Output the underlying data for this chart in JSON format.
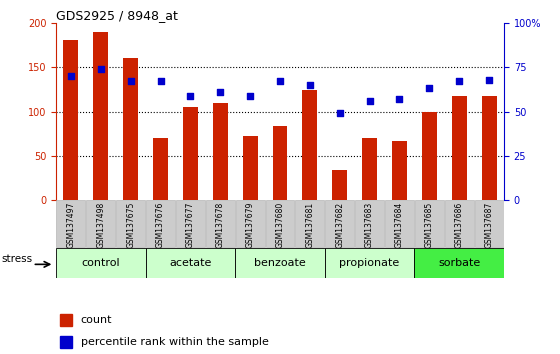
{
  "title": "GDS2925 / 8948_at",
  "samples": [
    "GSM137497",
    "GSM137498",
    "GSM137675",
    "GSM137676",
    "GSM137677",
    "GSM137678",
    "GSM137679",
    "GSM137680",
    "GSM137681",
    "GSM137682",
    "GSM137683",
    "GSM137684",
    "GSM137685",
    "GSM137686",
    "GSM137687"
  ],
  "counts": [
    181,
    190,
    161,
    70,
    105,
    110,
    72,
    84,
    124,
    34,
    70,
    67,
    100,
    117,
    117
  ],
  "percentiles": [
    70,
    74,
    67,
    67,
    59,
    61,
    59,
    67,
    65,
    49,
    56,
    57,
    63,
    67,
    68
  ],
  "groups": [
    {
      "label": "control",
      "start": 0,
      "end": 3
    },
    {
      "label": "acetate",
      "start": 3,
      "end": 6
    },
    {
      "label": "benzoate",
      "start": 6,
      "end": 9
    },
    {
      "label": "propionate",
      "start": 9,
      "end": 12
    },
    {
      "label": "sorbate",
      "start": 12,
      "end": 15
    }
  ],
  "group_colors": [
    "#ccffcc",
    "#ccffcc",
    "#ccffcc",
    "#ccffcc",
    "#44ee44"
  ],
  "ylim_left": [
    0,
    200
  ],
  "ylim_right": [
    0,
    100
  ],
  "yticks_left": [
    0,
    50,
    100,
    150,
    200
  ],
  "yticks_right": [
    0,
    25,
    50,
    75,
    100
  ],
  "ytick_labels_right": [
    "0",
    "25",
    "50",
    "75",
    "100%"
  ],
  "bar_color": "#cc2200",
  "dot_color": "#0000cc",
  "bar_width": 0.5,
  "stress_label": "stress",
  "legend_count": "count",
  "legend_pct": "percentile rank within the sample",
  "left_axis_color": "#cc2200",
  "right_axis_color": "#0000cc",
  "grid_color": "black",
  "grid_linestyle": "dotted",
  "grid_lw": 0.8,
  "ytick_fontsize": 7,
  "sample_fontsize": 5.5,
  "group_fontsize": 8,
  "legend_fontsize": 8,
  "title_fontsize": 9,
  "xtick_bg": "#cccccc",
  "xtick_edge": "#aaaaaa"
}
